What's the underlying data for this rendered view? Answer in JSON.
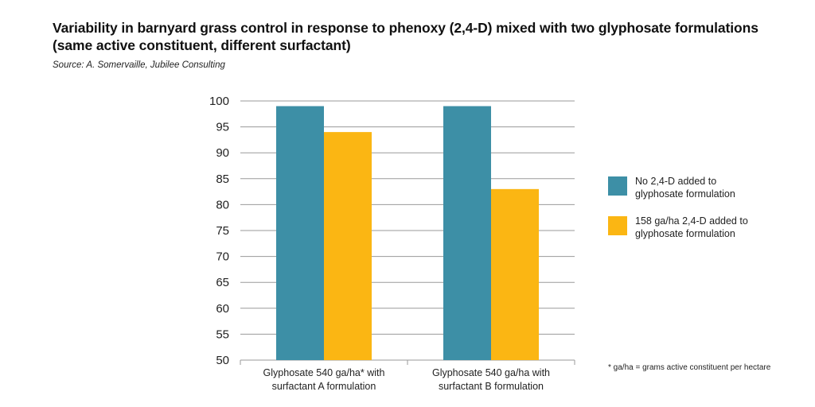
{
  "title_line1": "Variability in barnyard grass control in response to phenoxy (2,4-D) mixed with two glyphosate formulations",
  "title_line2": "(same active constituent, different surfactant)",
  "source": "Source: A. Somervaille, Jubilee Consulting",
  "footnote": "* ga/ha = grams active constituent per hectare",
  "colors": {
    "no_24d": "#3d8fa6",
    "with_24d": "#fbb613",
    "grid": "#9a9a9a"
  },
  "chart_data": {
    "type": "bar",
    "title": "Variability in barnyard grass control in response to phenoxy (2,4-D) mixed with two glyphosate formulations (same active constituent, different surfactant)",
    "xlabel": "",
    "ylabel": "",
    "ylim": [
      50,
      100
    ],
    "yticks": [
      "50",
      "55",
      "60",
      "65",
      "70",
      "75",
      "80",
      "85",
      "90",
      "95",
      "100"
    ],
    "categories": [
      [
        "Glyphosate 540 ga/ha* with",
        "surfactant A formulation"
      ],
      [
        "Glyphosate 540 ga/ha with",
        "surfactant B formulation"
      ]
    ],
    "series": [
      {
        "name": "No 2,4-D added to glyphosate formulation",
        "label_lines": [
          "No 2,4-D added to",
          "glyphosate formulation"
        ],
        "color": "#3d8fa6",
        "values": [
          99,
          99
        ]
      },
      {
        "name": "158 ga/ha 2,4-D added to glyphosate formulation",
        "label_lines": [
          "158 ga/ha 2,4-D added to",
          "glyphosate formulation"
        ],
        "color": "#fbb613",
        "values": [
          94,
          83
        ]
      }
    ],
    "grid": true,
    "legend_position": "right"
  }
}
